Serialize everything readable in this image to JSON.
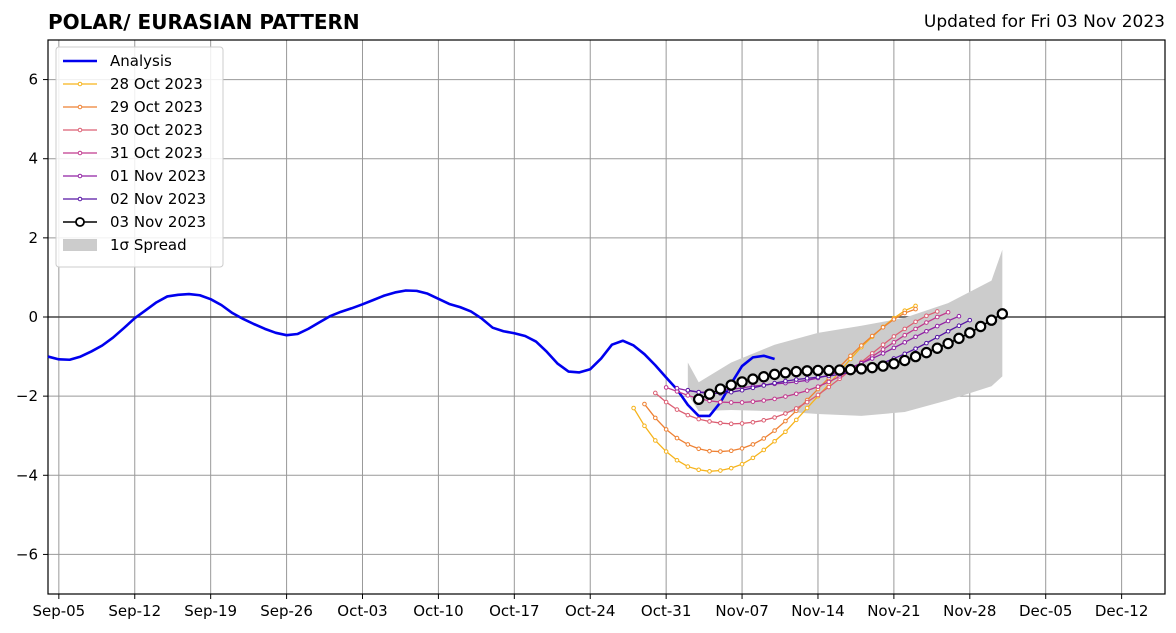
{
  "title": "POLAR/ EURASIAN  PATTERN",
  "subtitle": "Updated for Fri 03 Nov 2023",
  "chart_data": {
    "type": "line",
    "title": "POLAR/ EURASIAN  PATTERN",
    "subtitle": "Updated for Fri 03 Nov 2023",
    "x_unit": "date (2023)",
    "xlim": [
      "2023-09-04",
      "2023-12-16"
    ],
    "ylim": [
      -7,
      7
    ],
    "xticks": [
      "Sep-05",
      "Sep-12",
      "Sep-19",
      "Sep-26",
      "Oct-03",
      "Oct-10",
      "Oct-17",
      "Oct-24",
      "Oct-31",
      "Nov-07",
      "Nov-14",
      "Nov-21",
      "Nov-28",
      "Dec-05",
      "Dec-12"
    ],
    "xtick_dates": [
      "2023-09-05",
      "2023-09-12",
      "2023-09-19",
      "2023-09-26",
      "2023-10-03",
      "2023-10-10",
      "2023-10-17",
      "2023-10-24",
      "2023-10-31",
      "2023-11-07",
      "2023-11-14",
      "2023-11-21",
      "2023-11-28",
      "2023-12-05",
      "2023-12-12"
    ],
    "yticks": [
      6,
      4,
      2,
      0,
      -2,
      -4,
      -6
    ],
    "ytick_labels": [
      "6",
      "4",
      "2",
      "0",
      "−2",
      "−4",
      "−6"
    ],
    "grid": true,
    "legend_position": "top-left",
    "colors": {
      "analysis": "#0000ee",
      "spread": "#cccccc",
      "grid": "#999999",
      "zero_line": "#444444"
    },
    "analysis": {
      "name": "Analysis",
      "start": "2023-09-04",
      "values": [
        -1.0,
        -1.07,
        -1.08,
        -1.0,
        -0.87,
        -0.72,
        -0.52,
        -0.28,
        -0.03,
        0.17,
        0.37,
        0.52,
        0.56,
        0.58,
        0.55,
        0.45,
        0.3,
        0.1,
        -0.05,
        -0.18,
        -0.3,
        -0.4,
        -0.46,
        -0.43,
        -0.3,
        -0.14,
        0.02,
        0.13,
        0.22,
        0.32,
        0.43,
        0.54,
        0.62,
        0.67,
        0.66,
        0.59,
        0.46,
        0.33,
        0.25,
        0.14,
        -0.04,
        -0.27,
        -0.36,
        -0.41,
        -0.48,
        -0.62,
        -0.88,
        -1.18,
        -1.38,
        -1.4,
        -1.32,
        -1.05,
        -0.7,
        -0.6,
        -0.72,
        -0.94,
        -1.22,
        -1.53,
        -1.83,
        -2.22,
        -2.5,
        -2.5,
        -2.16,
        -1.68,
        -1.24,
        -1.02,
        -0.98,
        -1.06
      ]
    },
    "forecasts": [
      {
        "name": "28 Oct 2023",
        "color": "#f6b31b",
        "start": "2023-10-28",
        "values": [
          -2.3,
          -2.75,
          -3.12,
          -3.4,
          -3.62,
          -3.78,
          -3.86,
          -3.9,
          -3.88,
          -3.82,
          -3.72,
          -3.56,
          -3.36,
          -3.14,
          -2.9,
          -2.6,
          -2.3,
          -2.0,
          -1.7,
          -1.38,
          -1.06,
          -0.76,
          -0.5,
          -0.25,
          -0.03,
          0.16,
          0.28
        ]
      },
      {
        "name": "29 Oct 2023",
        "color": "#ee8133",
        "start": "2023-10-29",
        "values": [
          -2.2,
          -2.55,
          -2.84,
          -3.06,
          -3.22,
          -3.33,
          -3.39,
          -3.4,
          -3.38,
          -3.32,
          -3.22,
          -3.07,
          -2.87,
          -2.63,
          -2.37,
          -2.1,
          -1.82,
          -1.54,
          -1.26,
          -0.98,
          -0.72,
          -0.48,
          -0.26,
          -0.06,
          0.1,
          0.2
        ]
      },
      {
        "name": "30 Oct 2023",
        "color": "#dc5f73",
        "start": "2023-10-30",
        "values": [
          -1.92,
          -2.15,
          -2.34,
          -2.48,
          -2.58,
          -2.64,
          -2.68,
          -2.7,
          -2.69,
          -2.66,
          -2.61,
          -2.54,
          -2.44,
          -2.31,
          -2.15,
          -1.97,
          -1.77,
          -1.56,
          -1.35,
          -1.14,
          -0.92,
          -0.7,
          -0.49,
          -0.3,
          -0.12,
          0.03,
          0.14
        ]
      },
      {
        "name": "31 Oct 2023",
        "color": "#c13a8e",
        "start": "2023-10-31",
        "values": [
          -1.78,
          -1.88,
          -1.98,
          -2.06,
          -2.12,
          -2.15,
          -2.16,
          -2.16,
          -2.14,
          -2.11,
          -2.07,
          -2.01,
          -1.94,
          -1.86,
          -1.76,
          -1.64,
          -1.5,
          -1.34,
          -1.17,
          -1.0,
          -0.82,
          -0.64,
          -0.46,
          -0.3,
          -0.14,
          0.0,
          0.12
        ]
      },
      {
        "name": "01 Nov 2023",
        "color": "#9122a4",
        "start": "2023-11-01",
        "values": [
          -1.8,
          -1.86,
          -1.9,
          -1.9,
          -1.87,
          -1.83,
          -1.79,
          -1.75,
          -1.72,
          -1.69,
          -1.67,
          -1.64,
          -1.6,
          -1.54,
          -1.47,
          -1.38,
          -1.28,
          -1.17,
          -1.05,
          -0.92,
          -0.78,
          -0.64,
          -0.5,
          -0.36,
          -0.23,
          -0.1,
          0.02
        ]
      },
      {
        "name": "02 Nov 2023",
        "color": "#5614a4",
        "start": "2023-11-02",
        "values": [
          -1.85,
          -1.9,
          -1.93,
          -1.93,
          -1.9,
          -1.85,
          -1.79,
          -1.73,
          -1.67,
          -1.62,
          -1.58,
          -1.55,
          -1.52,
          -1.49,
          -1.45,
          -1.4,
          -1.34,
          -1.26,
          -1.16,
          -1.05,
          -0.93,
          -0.8,
          -0.66,
          -0.51,
          -0.36,
          -0.22,
          -0.08
        ]
      },
      {
        "name": "03 Nov 2023",
        "color": "#000000",
        "start": "2023-11-03",
        "values": [
          -2.08,
          -1.95,
          -1.82,
          -1.72,
          -1.64,
          -1.57,
          -1.51,
          -1.45,
          -1.41,
          -1.38,
          -1.36,
          -1.35,
          -1.35,
          -1.34,
          -1.33,
          -1.31,
          -1.28,
          -1.24,
          -1.18,
          -1.1,
          -1.0,
          -0.9,
          -0.79,
          -0.67,
          -0.54,
          -0.4,
          -0.24,
          -0.08,
          0.08
        ]
      }
    ],
    "spread": {
      "name": "1σ Spread",
      "x": [
        "2023-11-02",
        "2023-11-03",
        "2023-11-06",
        "2023-11-10",
        "2023-11-14",
        "2023-11-18",
        "2023-11-22",
        "2023-11-26",
        "2023-11-30",
        "2023-12-01"
      ],
      "upper": [
        -1.15,
        -1.65,
        -1.15,
        -0.7,
        -0.4,
        -0.22,
        -0.02,
        0.35,
        0.92,
        1.7
      ],
      "lower": [
        -1.95,
        -2.38,
        -2.35,
        -2.38,
        -2.45,
        -2.5,
        -2.4,
        -2.1,
        -1.75,
        -1.5
      ]
    }
  }
}
